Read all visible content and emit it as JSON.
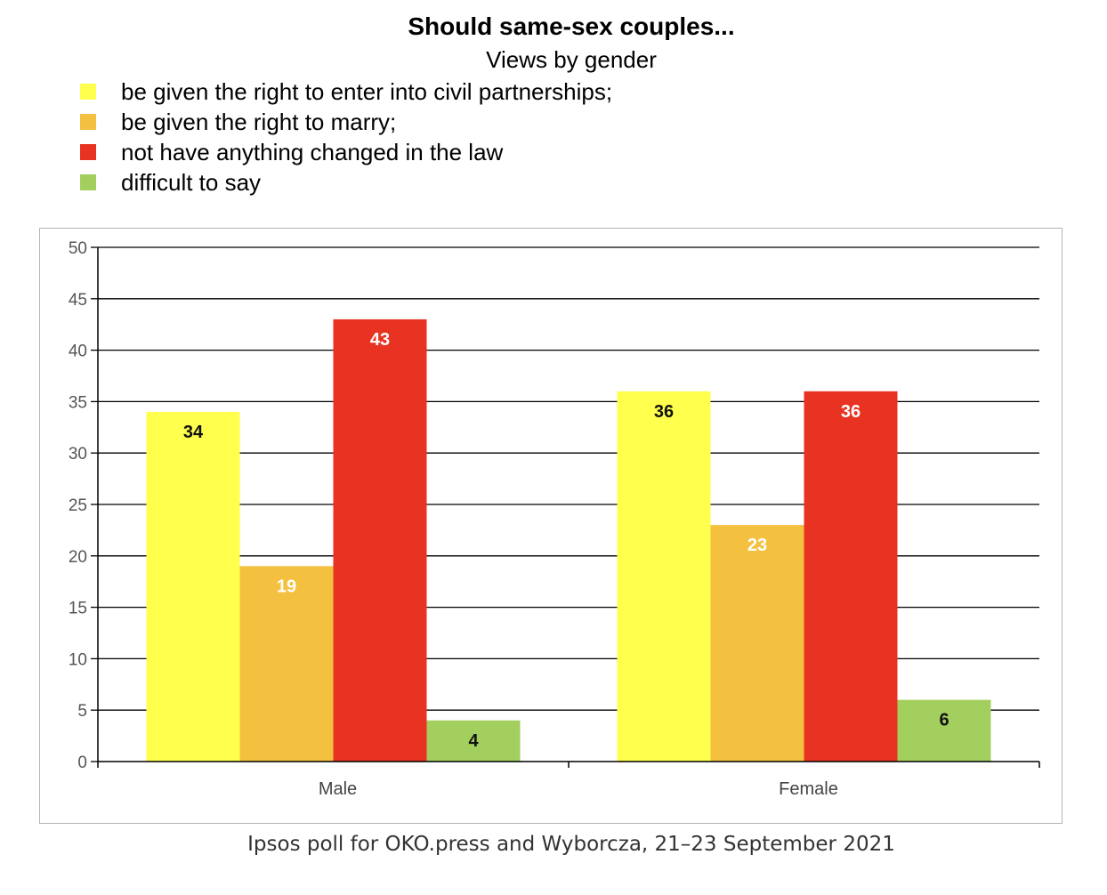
{
  "title": "Should same-sex couples...",
  "subtitle": "Views by gender",
  "source": "Ipsos poll for OKO.press and Wyborcza, 21–23 September 2021",
  "legend": [
    {
      "label": "be given the right to enter into civil partnerships;",
      "color": "#ffff4d"
    },
    {
      "label": "be given the right to marry;",
      "color": "#f4c040"
    },
    {
      "label": "not have anything changed in the law",
      "color": "#e83323"
    },
    {
      "label": "difficult to say",
      "color": "#a3cf5f"
    }
  ],
  "chart_data": {
    "type": "bar",
    "title": "Should same-sex couples...",
    "subtitle": "Views by gender",
    "categories": [
      "Male",
      "Female"
    ],
    "series": [
      {
        "name": "be given the right to enter into civil partnerships;",
        "values": [
          34,
          36
        ],
        "color": "#ffff4d",
        "label_color": "#111111"
      },
      {
        "name": "be given the right to marry;",
        "values": [
          19,
          23
        ],
        "color": "#f4c040",
        "label_color": "#ffffff"
      },
      {
        "name": "not have anything changed in the law",
        "values": [
          43,
          36
        ],
        "color": "#e83323",
        "label_color": "#ffffff"
      },
      {
        "name": "difficult to say",
        "values": [
          4,
          6
        ],
        "color": "#a3cf5f",
        "label_color": "#111111"
      }
    ],
    "xlabel": "",
    "ylabel": "",
    "ylim": [
      0,
      50
    ],
    "yticks": [
      0,
      5,
      10,
      15,
      20,
      25,
      30,
      35,
      40,
      45,
      50
    ],
    "grid": true,
    "legend_position": "top-left"
  }
}
